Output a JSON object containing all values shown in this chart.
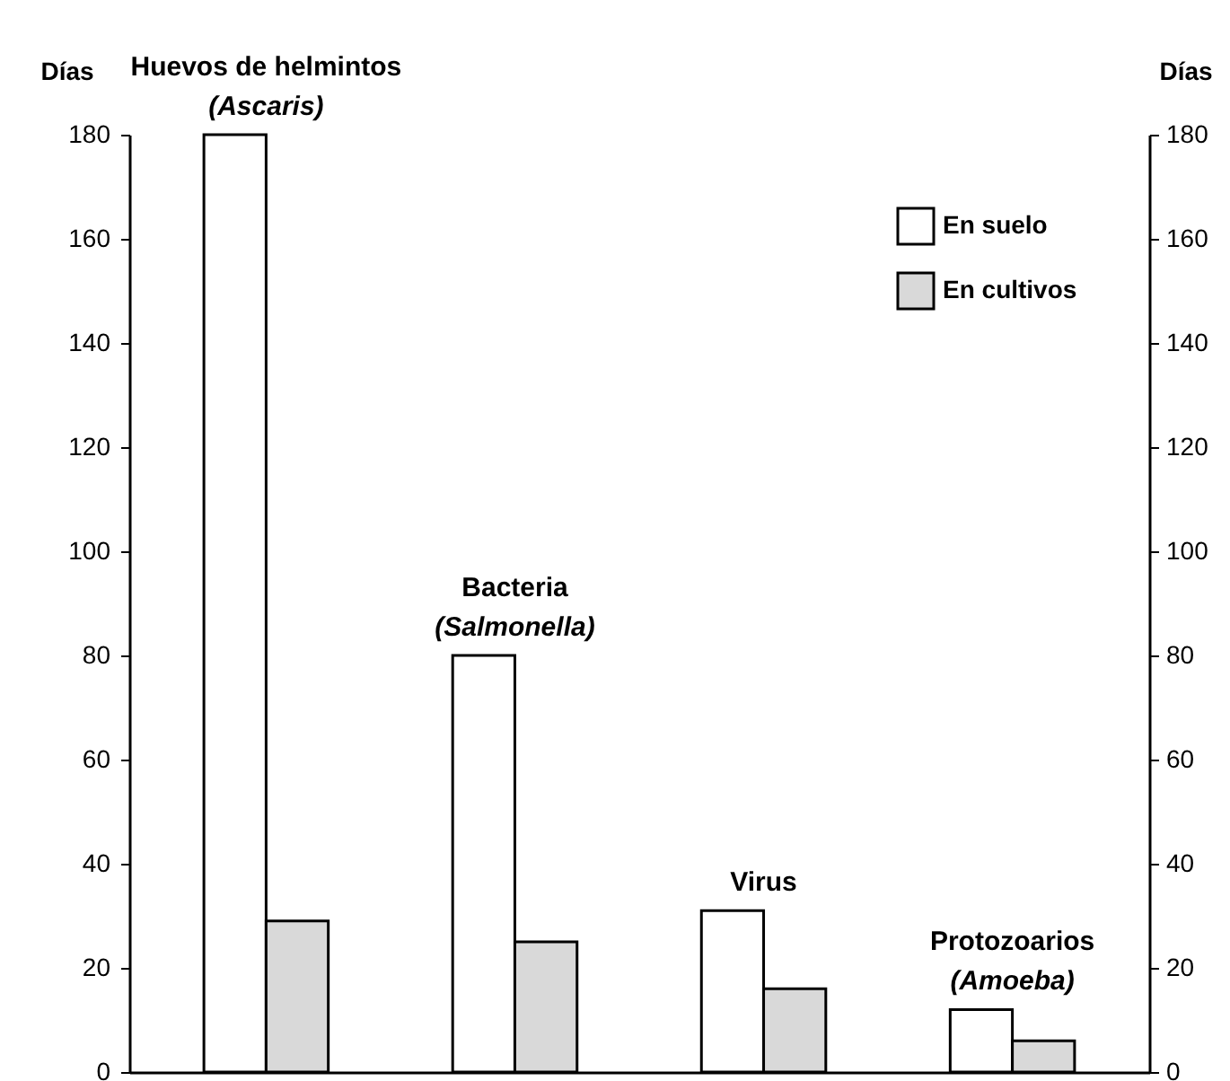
{
  "chart_data": {
    "type": "bar",
    "categories": [
      "Huevos de helmintos\n(Ascaris)",
      "Bacteria\n(Salmonella)",
      "Virus",
      "Protozoarios\n(Amoeba)"
    ],
    "series": [
      {
        "name": "En suelo",
        "color": "#ffffff",
        "values": [
          180,
          80,
          31,
          12
        ]
      },
      {
        "name": "En cultivos",
        "color": "#d9d9d9",
        "values": [
          29,
          25,
          16,
          6
        ]
      }
    ],
    "ylabel": "Días",
    "y2label": "Días",
    "ylim": [
      0,
      180
    ],
    "yticks": [
      0,
      20,
      40,
      60,
      80,
      100,
      120,
      140,
      160,
      180
    ],
    "y2lim": [
      0,
      180
    ],
    "y2ticks": [
      0,
      20,
      40,
      60,
      80,
      100,
      120,
      140,
      160,
      180
    ],
    "tick_labels": "y",
    "grid": false,
    "legend": "top right"
  }
}
